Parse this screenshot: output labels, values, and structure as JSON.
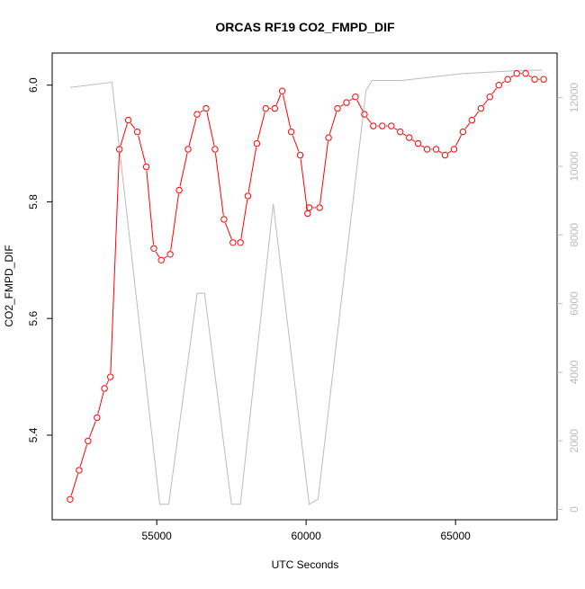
{
  "chart_data": {
    "type": "line",
    "title": "ORCAS RF19 CO2_FMPD_DIF",
    "xlabel": "UTC Seconds",
    "ylabel": "CO2_FMPD_DIF",
    "y2label": "",
    "xlim": [
      51500,
      68400
    ],
    "ylim": [
      5.255,
      6.055
    ],
    "y2lim": [
      -300,
      13300
    ],
    "x_ticks": [
      55000,
      60000,
      65000
    ],
    "x_tick_labels": [
      "55000",
      "60000",
      "65000"
    ],
    "y_ticks": [
      5.4,
      5.6,
      5.8,
      6.0
    ],
    "y_tick_labels": [
      "5.4",
      "5.6",
      "5.8",
      "6.0"
    ],
    "y2_ticks": [
      0,
      2000,
      4000,
      6000,
      8000,
      10000,
      12000
    ],
    "y2_tick_labels": [
      "0",
      "2000",
      "4000",
      "6000",
      "8000",
      "10000",
      "12000"
    ],
    "grid": false,
    "legend": "none",
    "series": [
      {
        "axis": "left",
        "color": "#ff0000",
        "style": "line-with-open-circles",
        "x": [
          52100,
          52400,
          52700,
          53000,
          53250,
          53450,
          53750,
          54050,
          54350,
          54650,
          54900,
          55150,
          55450,
          55750,
          56050,
          56350,
          56650,
          56950,
          57250,
          57550,
          57800,
          58050,
          58350,
          58650,
          58950,
          59200,
          59500,
          59800,
          60050,
          60100,
          60450,
          60750,
          61050,
          61350,
          61650,
          61950,
          62250,
          62550,
          62850,
          63150,
          63450,
          63750,
          64050,
          64350,
          64650,
          64950,
          65250,
          65550,
          65850,
          66150,
          66450,
          66750,
          67050,
          67350,
          67650,
          67950
        ],
        "y": [
          5.29,
          5.34,
          5.39,
          5.43,
          5.48,
          5.5,
          5.89,
          5.94,
          5.92,
          5.86,
          5.72,
          5.7,
          5.71,
          5.82,
          5.89,
          5.95,
          5.96,
          5.89,
          5.77,
          5.73,
          5.73,
          5.81,
          5.9,
          5.96,
          5.96,
          5.99,
          5.92,
          5.88,
          5.78,
          5.79,
          5.79,
          5.91,
          5.96,
          5.97,
          5.98,
          5.95,
          5.93,
          5.93,
          5.93,
          5.92,
          5.91,
          5.9,
          5.89,
          5.89,
          5.88,
          5.89,
          5.92,
          5.94,
          5.96,
          5.98,
          6.0,
          6.01,
          6.02,
          6.02,
          6.01,
          6.01
        ]
      },
      {
        "axis": "right",
        "color": "#bbbbbb",
        "style": "line",
        "x": [
          52100,
          53500,
          55100,
          55400,
          56350,
          56600,
          57500,
          57800,
          58900,
          60100,
          60400,
          62000,
          62200,
          63200,
          65200,
          67300,
          67900
        ],
        "y": [
          12300,
          12450,
          150,
          150,
          6300,
          6300,
          150,
          150,
          8900,
          150,
          300,
          12200,
          12500,
          12500,
          12700,
          12800,
          12800
        ]
      }
    ]
  }
}
